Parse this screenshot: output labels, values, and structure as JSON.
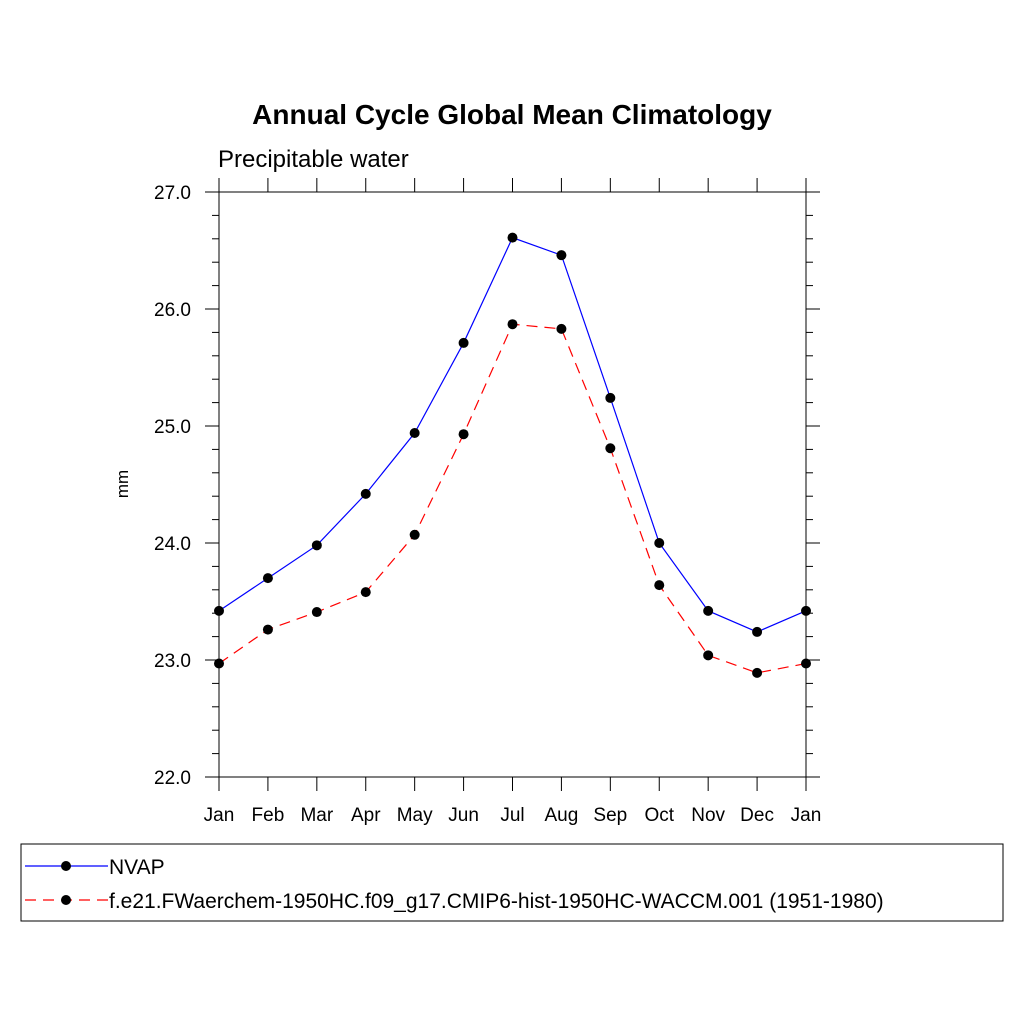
{
  "chart_data": {
    "type": "line",
    "title": "Annual Cycle Global Mean Climatology",
    "subtitle": "Precipitable water",
    "xlabel": "",
    "ylabel": "mm",
    "categories": [
      "Jan",
      "Feb",
      "Mar",
      "Apr",
      "May",
      "Jun",
      "Jul",
      "Aug",
      "Sep",
      "Oct",
      "Nov",
      "Dec",
      "Jan"
    ],
    "ylim": [
      22.0,
      27.0
    ],
    "yticks": [
      "22.0",
      "23.0",
      "24.0",
      "25.0",
      "26.0",
      "27.0"
    ],
    "series": [
      {
        "name": "NVAP",
        "color": "#0000ff",
        "dash": "solid",
        "values": [
          23.42,
          23.7,
          23.98,
          24.42,
          24.94,
          25.71,
          26.61,
          26.46,
          25.24,
          24.0,
          23.42,
          23.24,
          23.42
        ]
      },
      {
        "name": "f.e21.FWaerchem-1950HC.f09_g17.CMIP6-hist-1950HC-WACCM.001 (1951-1980)",
        "color": "#ff0000",
        "dash": "dashed",
        "values": [
          22.97,
          23.26,
          23.41,
          23.58,
          24.07,
          24.93,
          25.87,
          25.83,
          24.81,
          23.64,
          23.04,
          22.89,
          22.97
        ]
      }
    ],
    "grid": false,
    "legend_position": "bottom"
  }
}
